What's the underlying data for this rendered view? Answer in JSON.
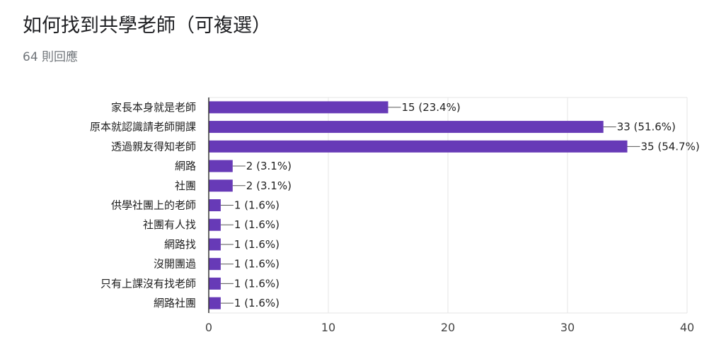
{
  "header": {
    "title": "如何找到共學老師（可複選）",
    "responses": "64 則回應"
  },
  "colors": {
    "bar": "#673ab7",
    "grid": "#e6e6e6",
    "axis": "#333333"
  },
  "chart_data": {
    "type": "bar",
    "orientation": "horizontal",
    "title": "",
    "xlabel": "",
    "ylabel": "",
    "xlim": [
      0,
      40
    ],
    "xticks": [
      0,
      10,
      20,
      30,
      40
    ],
    "grid": true,
    "legend": "none",
    "categories": [
      "家長本身就是老師",
      "原本就認識請老師開課",
      "透過親友得知老師",
      "網路",
      "社團",
      "供學社團上的老師",
      "社團有人找",
      "網路找",
      "沒開團過",
      "只有上課沒有找老師",
      "網路社團"
    ],
    "values": [
      15,
      33,
      35,
      2,
      2,
      1,
      1,
      1,
      1,
      1,
      1
    ],
    "data_labels": [
      "15 (23.4%)",
      "33 (51.6%)",
      "35 (54.7%)",
      "2 (3.1%)",
      "2 (3.1%)",
      "1 (1.6%)",
      "1 (1.6%)",
      "1 (1.6%)",
      "1 (1.6%)",
      "1 (1.6%)",
      "1 (1.6%)"
    ]
  }
}
